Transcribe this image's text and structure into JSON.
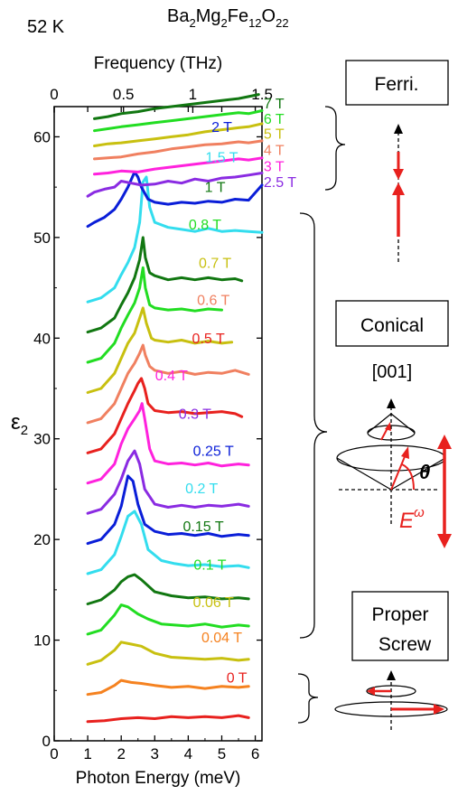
{
  "header": {
    "temperature": "52 K",
    "compound": {
      "base": "Ba",
      "s1": "2",
      "m1": "Mg",
      "s2": "2",
      "m2": "Fe",
      "s3": "12",
      "m3": "O",
      "s4": "22"
    }
  },
  "chart_data": {
    "type": "line",
    "title": "",
    "xlabel": "Photon Energy (meV)",
    "ylabel": "ε",
    "ylabel_sub": "2",
    "top_xlabel": "Frequency (THz)",
    "xlim": [
      0,
      6.2
    ],
    "ylim": [
      0,
      63
    ],
    "x_ticks": [
      0,
      1,
      2,
      3,
      4,
      5,
      6
    ],
    "y_ticks": [
      0,
      10,
      20,
      30,
      40,
      50,
      60
    ],
    "top_ticks": [
      "0",
      "0.5",
      "1",
      "1.5"
    ],
    "series": [
      {
        "name": "0 T",
        "color": "#e8211e",
        "label_x": 5.45,
        "label_y": 5.8,
        "x": [
          1.0,
          1.5,
          2.0,
          2.5,
          3.0,
          3.5,
          4.0,
          4.5,
          5.0,
          5.5,
          5.8
        ],
        "y": [
          1.9,
          2.0,
          2.2,
          2.3,
          2.2,
          2.4,
          2.3,
          2.4,
          2.3,
          2.5,
          2.3
        ]
      },
      {
        "name": "0.04 T",
        "color": "#f58220",
        "label_x": 5.0,
        "label_y": 9.8,
        "x": [
          1.0,
          1.4,
          1.8,
          2.0,
          2.3,
          2.6,
          3.0,
          3.5,
          4.0,
          4.5,
          5.0,
          5.5,
          5.8
        ],
        "y": [
          4.6,
          4.8,
          5.5,
          6.0,
          5.8,
          5.7,
          5.5,
          5.3,
          5.4,
          5.2,
          5.4,
          5.3,
          5.4
        ]
      },
      {
        "name": "0.06 T",
        "color": "#c8c010",
        "label_x": 4.75,
        "label_y": 13.3,
        "x": [
          1.0,
          1.4,
          1.8,
          2.0,
          2.3,
          2.6,
          3.0,
          3.5,
          4.0,
          4.5,
          5.0,
          5.5,
          5.8
        ],
        "y": [
          7.6,
          8.0,
          9.0,
          9.8,
          9.6,
          9.4,
          8.7,
          8.3,
          8.2,
          8.1,
          8.2,
          8.0,
          8.1
        ]
      },
      {
        "name": "0.1 T",
        "color": "#22dd22",
        "label_x": 4.65,
        "label_y": 17.0,
        "x": [
          1.0,
          1.4,
          1.8,
          2.0,
          2.2,
          2.5,
          2.8,
          3.2,
          3.6,
          4.0,
          4.5,
          5.0,
          5.5,
          5.8
        ],
        "y": [
          10.6,
          11.0,
          12.5,
          13.5,
          13.3,
          12.6,
          12.1,
          11.6,
          11.5,
          11.4,
          11.6,
          11.3,
          11.5,
          11.4
        ]
      },
      {
        "name": "0.15 T",
        "color": "#117711",
        "label_x": 4.45,
        "label_y": 20.8,
        "x": [
          1.0,
          1.4,
          1.8,
          2.0,
          2.2,
          2.4,
          2.6,
          3.0,
          3.5,
          4.0,
          4.5,
          5.0,
          5.5,
          5.8
        ],
        "y": [
          13.6,
          14.0,
          15.0,
          15.8,
          16.3,
          16.5,
          16.0,
          14.8,
          14.4,
          14.2,
          14.3,
          14.1,
          14.2,
          14.1
        ]
      },
      {
        "name": "0.2 T",
        "color": "#33ddee",
        "label_x": 4.4,
        "label_y": 24.6,
        "x": [
          1.0,
          1.4,
          1.8,
          2.0,
          2.2,
          2.4,
          2.6,
          2.8,
          3.2,
          3.6,
          4.0,
          4.5,
          5.0,
          5.5,
          5.8
        ],
        "y": [
          16.6,
          17.0,
          18.5,
          20.3,
          22.3,
          22.8,
          21.5,
          19.0,
          17.9,
          17.6,
          17.4,
          17.5,
          17.3,
          17.4,
          17.2
        ]
      },
      {
        "name": "0.25 T",
        "color": "#0a1ed8",
        "label_x": 4.75,
        "label_y": 28.3,
        "x": [
          1.0,
          1.4,
          1.8,
          2.0,
          2.2,
          2.35,
          2.5,
          2.7,
          3.0,
          3.4,
          3.8,
          4.2,
          4.6,
          5.0,
          5.5,
          5.8
        ],
        "y": [
          19.6,
          20.0,
          21.5,
          23.3,
          26.3,
          25.8,
          23.5,
          21.5,
          20.8,
          20.5,
          20.6,
          20.4,
          20.6,
          20.3,
          20.5,
          20.4
        ]
      },
      {
        "name": "0.3 T",
        "color": "#8a2be2",
        "label_x": 4.2,
        "label_y": 32.0,
        "x": [
          1.0,
          1.4,
          1.8,
          2.0,
          2.2,
          2.4,
          2.55,
          2.7,
          3.0,
          3.4,
          3.8,
          4.2,
          4.6,
          5.0,
          5.5,
          5.8
        ],
        "y": [
          22.6,
          23.0,
          24.5,
          26.0,
          27.8,
          28.8,
          27.5,
          25.0,
          23.5,
          23.2,
          23.4,
          23.2,
          23.4,
          23.3,
          23.5,
          23.3
        ]
      },
      {
        "name": "0.4 T",
        "color": "#ff22dd",
        "label_x": 3.5,
        "label_y": 35.8,
        "x": [
          1.0,
          1.4,
          1.8,
          2.0,
          2.2,
          2.4,
          2.55,
          2.62,
          2.7,
          2.85,
          3.0,
          3.4,
          3.8,
          4.2,
          4.6,
          5.0,
          5.5,
          5.8
        ],
        "y": [
          25.6,
          26.0,
          27.5,
          29.5,
          31.0,
          32.0,
          32.8,
          33.5,
          32.0,
          29.0,
          27.8,
          27.5,
          27.6,
          27.4,
          27.6,
          27.3,
          27.5,
          27.4
        ]
      },
      {
        "name": "0.5 T",
        "color": "#e8211e",
        "label_x": 4.6,
        "label_y": 39.5,
        "x": [
          1.0,
          1.4,
          1.8,
          2.0,
          2.2,
          2.4,
          2.5,
          2.6,
          2.7,
          2.8,
          3.0,
          3.4,
          3.8,
          4.2,
          4.6,
          5.0,
          5.4,
          5.6
        ],
        "y": [
          28.6,
          29.0,
          30.5,
          32.0,
          33.5,
          34.8,
          35.5,
          36.0,
          35.0,
          33.5,
          32.8,
          32.6,
          32.7,
          32.5,
          32.6,
          32.7,
          32.5,
          32.2
        ]
      },
      {
        "name": "0.6 T",
        "color": "#f08060",
        "label_x": 4.75,
        "label_y": 43.3,
        "x": [
          1.0,
          1.4,
          1.8,
          2.0,
          2.2,
          2.4,
          2.55,
          2.65,
          2.72,
          2.85,
          3.0,
          3.4,
          3.8,
          4.2,
          4.6,
          5.0,
          5.4,
          5.8
        ],
        "y": [
          31.6,
          32.0,
          33.5,
          35.0,
          36.5,
          37.5,
          38.5,
          39.3,
          38.3,
          37.2,
          36.8,
          36.5,
          36.7,
          36.4,
          36.6,
          36.5,
          36.8,
          36.4
        ]
      },
      {
        "name": "0.7 T",
        "color": "#c8c010",
        "label_x": 4.8,
        "label_y": 47.0,
        "x": [
          1.0,
          1.4,
          1.8,
          2.0,
          2.2,
          2.4,
          2.55,
          2.65,
          2.75,
          2.9,
          3.0,
          3.4,
          3.8,
          4.2,
          4.6,
          5.0,
          5.3
        ],
        "y": [
          34.6,
          35.0,
          36.5,
          38.0,
          39.5,
          40.5,
          42.0,
          43.0,
          41.5,
          40.0,
          39.8,
          39.6,
          39.8,
          39.5,
          39.7,
          39.5,
          39.6
        ]
      },
      {
        "name": "0.8 T",
        "color": "#22dd22",
        "label_x": 4.5,
        "label_y": 50.8,
        "x": [
          1.0,
          1.4,
          1.8,
          2.0,
          2.2,
          2.4,
          2.55,
          2.65,
          2.72,
          2.85,
          3.0,
          3.4,
          3.8,
          4.2,
          4.6,
          5.0
        ],
        "y": [
          37.6,
          38.0,
          39.5,
          41.0,
          42.3,
          43.5,
          45.0,
          47.0,
          45.0,
          43.3,
          43.0,
          42.8,
          42.9,
          42.7,
          42.9,
          42.8
        ]
      },
      {
        "name": "1 T",
        "color": "#117711",
        "label_x": 4.8,
        "label_y": 54.5,
        "x": [
          1.0,
          1.4,
          1.8,
          2.0,
          2.2,
          2.4,
          2.55,
          2.65,
          2.72,
          2.85,
          3.0,
          3.4,
          3.8,
          4.2,
          4.6,
          5.0,
          5.4,
          5.6
        ],
        "y": [
          40.6,
          41.0,
          42.0,
          43.3,
          44.5,
          46.0,
          47.8,
          50.0,
          48.0,
          46.5,
          46.2,
          45.8,
          46.0,
          45.8,
          46.0,
          45.8,
          45.9,
          45.7
        ]
      },
      {
        "name": "1.5 T",
        "color": "#33ddee",
        "label_x": 5.0,
        "label_y": 57.5,
        "x": [
          1.0,
          1.4,
          1.8,
          2.0,
          2.2,
          2.4,
          2.55,
          2.65,
          2.75,
          2.85,
          3.0,
          3.4,
          3.8,
          4.2,
          4.6,
          5.0,
          5.4,
          5.8,
          6.2
        ],
        "y": [
          43.6,
          44.0,
          45.0,
          46.3,
          47.5,
          49.0,
          51.5,
          55.5,
          56.0,
          53.0,
          51.5,
          51.0,
          50.8,
          50.6,
          50.9,
          50.6,
          50.7,
          50.6,
          50.5
        ]
      },
      {
        "name": "2 T",
        "color": "#0a1ed8",
        "label_x": 5.0,
        "label_y": 60.5,
        "x": [
          1.0,
          1.2,
          1.5,
          1.8,
          2.0,
          2.2,
          2.4,
          2.5,
          2.6,
          2.8,
          3.0,
          3.4,
          3.8,
          4.2,
          4.6,
          5.0,
          5.4,
          5.8,
          6.2
        ],
        "y": [
          51.1,
          51.5,
          52.0,
          52.8,
          53.8,
          55.0,
          56.5,
          56.0,
          55.0,
          53.8,
          53.5,
          53.3,
          53.5,
          53.4,
          53.6,
          53.5,
          53.8,
          53.7,
          55.2
        ]
      },
      {
        "name": "2.5 T",
        "color": "#8a2be2",
        "label_x": 6.25,
        "label_y": 55.0,
        "x": [
          1.0,
          1.2,
          1.5,
          1.8,
          2.0,
          2.3,
          2.6,
          3.0,
          3.4,
          3.8,
          4.2,
          4.6,
          5.0,
          5.4,
          5.8,
          6.2
        ],
        "y": [
          54.1,
          54.5,
          54.8,
          55.0,
          55.6,
          55.4,
          55.2,
          55.3,
          55.6,
          55.4,
          55.8,
          55.6,
          55.9,
          56.0,
          56.2,
          56.4
        ]
      },
      {
        "name": "3 T",
        "color": "#ff22dd",
        "label_x": 6.25,
        "label_y": 56.6,
        "x": [
          1.2,
          1.6,
          2.0,
          2.5,
          3.0,
          3.5,
          4.0,
          4.5,
          5.0,
          5.5,
          5.8,
          6.2
        ],
        "y": [
          56.3,
          56.4,
          56.6,
          56.5,
          56.8,
          57.0,
          57.2,
          57.4,
          57.6,
          57.8,
          57.7,
          57.9
        ]
      },
      {
        "name": "4 T",
        "color": "#f08060",
        "label_x": 6.25,
        "label_y": 58.2,
        "x": [
          1.2,
          1.6,
          2.0,
          2.5,
          3.0,
          3.5,
          4.0,
          4.5,
          5.0,
          5.5,
          5.8,
          6.2
        ],
        "y": [
          57.8,
          57.9,
          58.0,
          58.3,
          58.5,
          58.8,
          59.0,
          59.2,
          59.3,
          59.5,
          59.4,
          59.6
        ]
      },
      {
        "name": "5 T",
        "color": "#c8c010",
        "label_x": 6.25,
        "label_y": 59.8,
        "x": [
          1.2,
          1.6,
          2.0,
          2.5,
          3.0,
          3.5,
          4.0,
          4.5,
          5.0,
          5.5,
          5.8,
          6.2
        ],
        "y": [
          59.1,
          59.3,
          59.4,
          59.6,
          59.8,
          60.0,
          60.2,
          60.5,
          60.7,
          60.9,
          61.0,
          61.3
        ]
      },
      {
        "name": "6 T",
        "color": "#22dd22",
        "label_x": 6.25,
        "label_y": 61.3,
        "x": [
          1.2,
          1.6,
          2.0,
          2.5,
          3.0,
          3.5,
          4.0,
          4.5,
          5.0,
          5.5,
          5.8,
          6.2
        ],
        "y": [
          60.6,
          60.8,
          61.0,
          61.2,
          61.4,
          61.6,
          61.8,
          62.0,
          62.2,
          62.4,
          62.3,
          62.6
        ]
      },
      {
        "name": "7 T",
        "color": "#117711",
        "label_x": 6.25,
        "label_y": 62.8,
        "x": [
          1.2,
          1.6,
          2.0,
          2.5,
          3.0,
          3.5,
          4.0,
          4.5,
          5.0,
          5.5,
          5.8,
          6.1
        ],
        "y": [
          61.8,
          62.0,
          62.3,
          62.5,
          62.8,
          63.0,
          63.2,
          63.4,
          63.6,
          63.8,
          64.0,
          64.2
        ]
      }
    ]
  },
  "phases": {
    "ferri": "Ferri.",
    "conical": "Conical",
    "direction": "[001]",
    "theta": "θ",
    "efield_base": "E",
    "efield_sup": "ω",
    "proper_line1": "Proper",
    "proper_line2": "Screw"
  },
  "colors": {
    "arrow": "#e8211e",
    "axis": "#000000"
  }
}
